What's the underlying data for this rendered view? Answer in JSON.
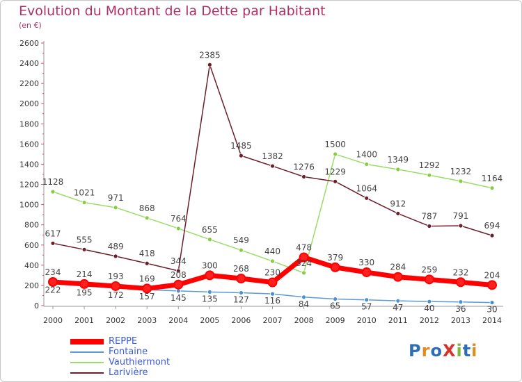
{
  "title": "Evolution du Montant de la Dette par Habitant",
  "subtitle": "(en €)",
  "logo": {
    "text": "ProXiti",
    "colors": [
      "#2c6fb8",
      "#e08a1f",
      "#2c6fb8",
      "#d6332b",
      "#7ab83a",
      "#2c6fb8",
      "#e08a1f"
    ]
  },
  "chart_data": {
    "type": "line",
    "title": "Evolution du Montant de la Dette par Habitant",
    "ylabel": "(en €)",
    "xlabel": "",
    "x": [
      "2000",
      "2001",
      "2002",
      "2003",
      "2004",
      "2005",
      "2006",
      "2007",
      "2008",
      "2009",
      "2010",
      "2011",
      "2012",
      "2013",
      "2014"
    ],
    "ylim": [
      0,
      2600
    ],
    "yticks": [
      0,
      200,
      400,
      600,
      800,
      1000,
      1200,
      1400,
      1600,
      1800,
      2000,
      2200,
      2400,
      2600
    ],
    "grid": false,
    "legend_position": "bottom-left",
    "series": [
      {
        "name": "REPPE",
        "color": "#ff0000",
        "values": [
          234,
          214,
          193,
          169,
          208,
          300,
          268,
          230,
          478,
          379,
          330,
          284,
          259,
          232,
          204
        ]
      },
      {
        "name": "Fontaine",
        "color": "#5b9bd5",
        "values": [
          222,
          195,
          172,
          157,
          145,
          135,
          127,
          116,
          84,
          65,
          57,
          47,
          40,
          36,
          30
        ]
      },
      {
        "name": "Vauthiermont",
        "color": "#99dd66",
        "values": [
          1128,
          1021,
          971,
          868,
          764,
          655,
          549,
          440,
          324,
          1500,
          1400,
          1349,
          1292,
          1232,
          1164
        ]
      },
      {
        "name": "Larivière",
        "color": "#6b1f2a",
        "values": [
          617,
          555,
          489,
          418,
          344,
          2385,
          1485,
          1382,
          1276,
          1229,
          1064,
          912,
          787,
          791,
          694
        ]
      }
    ]
  }
}
